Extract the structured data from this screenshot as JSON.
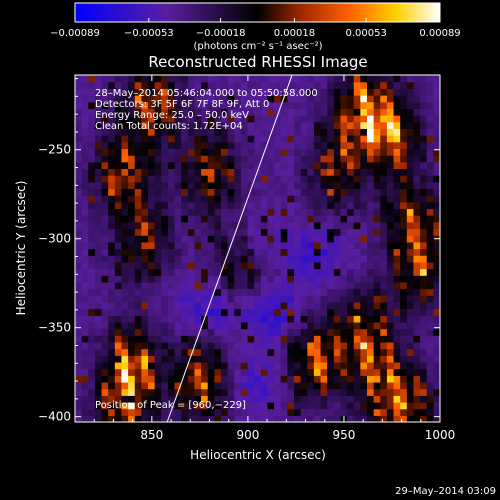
{
  "chart_data": {
    "type": "heatmap",
    "title": "Reconstructed RHESSI Image",
    "xlabel": "Heliocentric X (arcsec)",
    "ylabel": "Heliocentric Y (arcsec)",
    "xlim": [
      810,
      1000
    ],
    "ylim": [
      -403,
      -208
    ],
    "x_ticks": [
      850,
      900,
      950,
      1000
    ],
    "x_tick_labels": [
      "850",
      "900",
      "950",
      "1000"
    ],
    "y_ticks": [
      -250,
      -300,
      -350,
      -400
    ],
    "y_tick_labels": [
      "−250",
      "−300",
      "−350",
      "−400"
    ],
    "colorbar": {
      "range": [
        -0.00089,
        0.00089
      ],
      "ticks": [
        -0.00089,
        -0.00053,
        -0.00018,
        0.00018,
        0.00053,
        0.00089
      ],
      "tick_labels": [
        "−0.00089",
        "−0.00053",
        "−0.00018",
        "0.00018",
        "0.00053",
        "0.00089"
      ],
      "units_label": "(photons cm⁻² s⁻¹ asec⁻²)",
      "colors": [
        "#0000ff",
        "#5a1ea0",
        "#000000",
        "#a02800",
        "#ff6000",
        "#ffd000",
        "#ffffff"
      ]
    },
    "annotations": [
      "28–May–2014 05:46:04.000 to 05:50:58.000",
      "Detectors: 3F 5F 6F 7F 8F 9F, Att 0",
      "Energy Range: 25.0 – 50.0 keV",
      "Clean    Total counts: 1.72E+04"
    ],
    "peak_label": "Position of Peak = [960,−229]",
    "limb_line": {
      "x": [
        858,
        923
      ],
      "y": [
        -403,
        -208
      ]
    },
    "heatmap": {
      "nx": 55,
      "ny": 52,
      "background": "#3a1a80",
      "hot_regions": [
        {
          "x": 835,
          "y": -262,
          "strength": 0.9
        },
        {
          "x": 850,
          "y": -225,
          "strength": 1.0
        },
        {
          "x": 880,
          "y": -262,
          "strength": 0.8
        },
        {
          "x": 845,
          "y": -300,
          "strength": 0.7
        },
        {
          "x": 895,
          "y": -312,
          "strength": 0.6
        },
        {
          "x": 840,
          "y": -370,
          "strength": 1.0
        },
        {
          "x": 875,
          "y": -380,
          "strength": 1.0
        },
        {
          "x": 835,
          "y": -395,
          "strength": 0.9
        },
        {
          "x": 960,
          "y": -229,
          "strength": 1.2
        },
        {
          "x": 975,
          "y": -242,
          "strength": 1.0
        },
        {
          "x": 945,
          "y": -258,
          "strength": 0.9
        },
        {
          "x": 985,
          "y": -290,
          "strength": 0.8
        },
        {
          "x": 990,
          "y": -318,
          "strength": 0.8
        },
        {
          "x": 960,
          "y": -352,
          "strength": 0.9
        },
        {
          "x": 935,
          "y": -368,
          "strength": 1.0
        },
        {
          "x": 970,
          "y": -382,
          "strength": 0.9
        },
        {
          "x": 985,
          "y": -398,
          "strength": 0.8
        }
      ],
      "cold_regions": [
        {
          "x": 880,
          "y": -338,
          "strength": 0.7
        },
        {
          "x": 915,
          "y": -342,
          "strength": 0.7
        },
        {
          "x": 900,
          "y": -300,
          "strength": 0.5
        },
        {
          "x": 935,
          "y": -310,
          "strength": 0.6
        },
        {
          "x": 940,
          "y": -250,
          "strength": 0.4
        },
        {
          "x": 905,
          "y": -380,
          "strength": 0.5
        }
      ],
      "seed": 7
    },
    "timestamp": "29–May–2014 03:09"
  }
}
